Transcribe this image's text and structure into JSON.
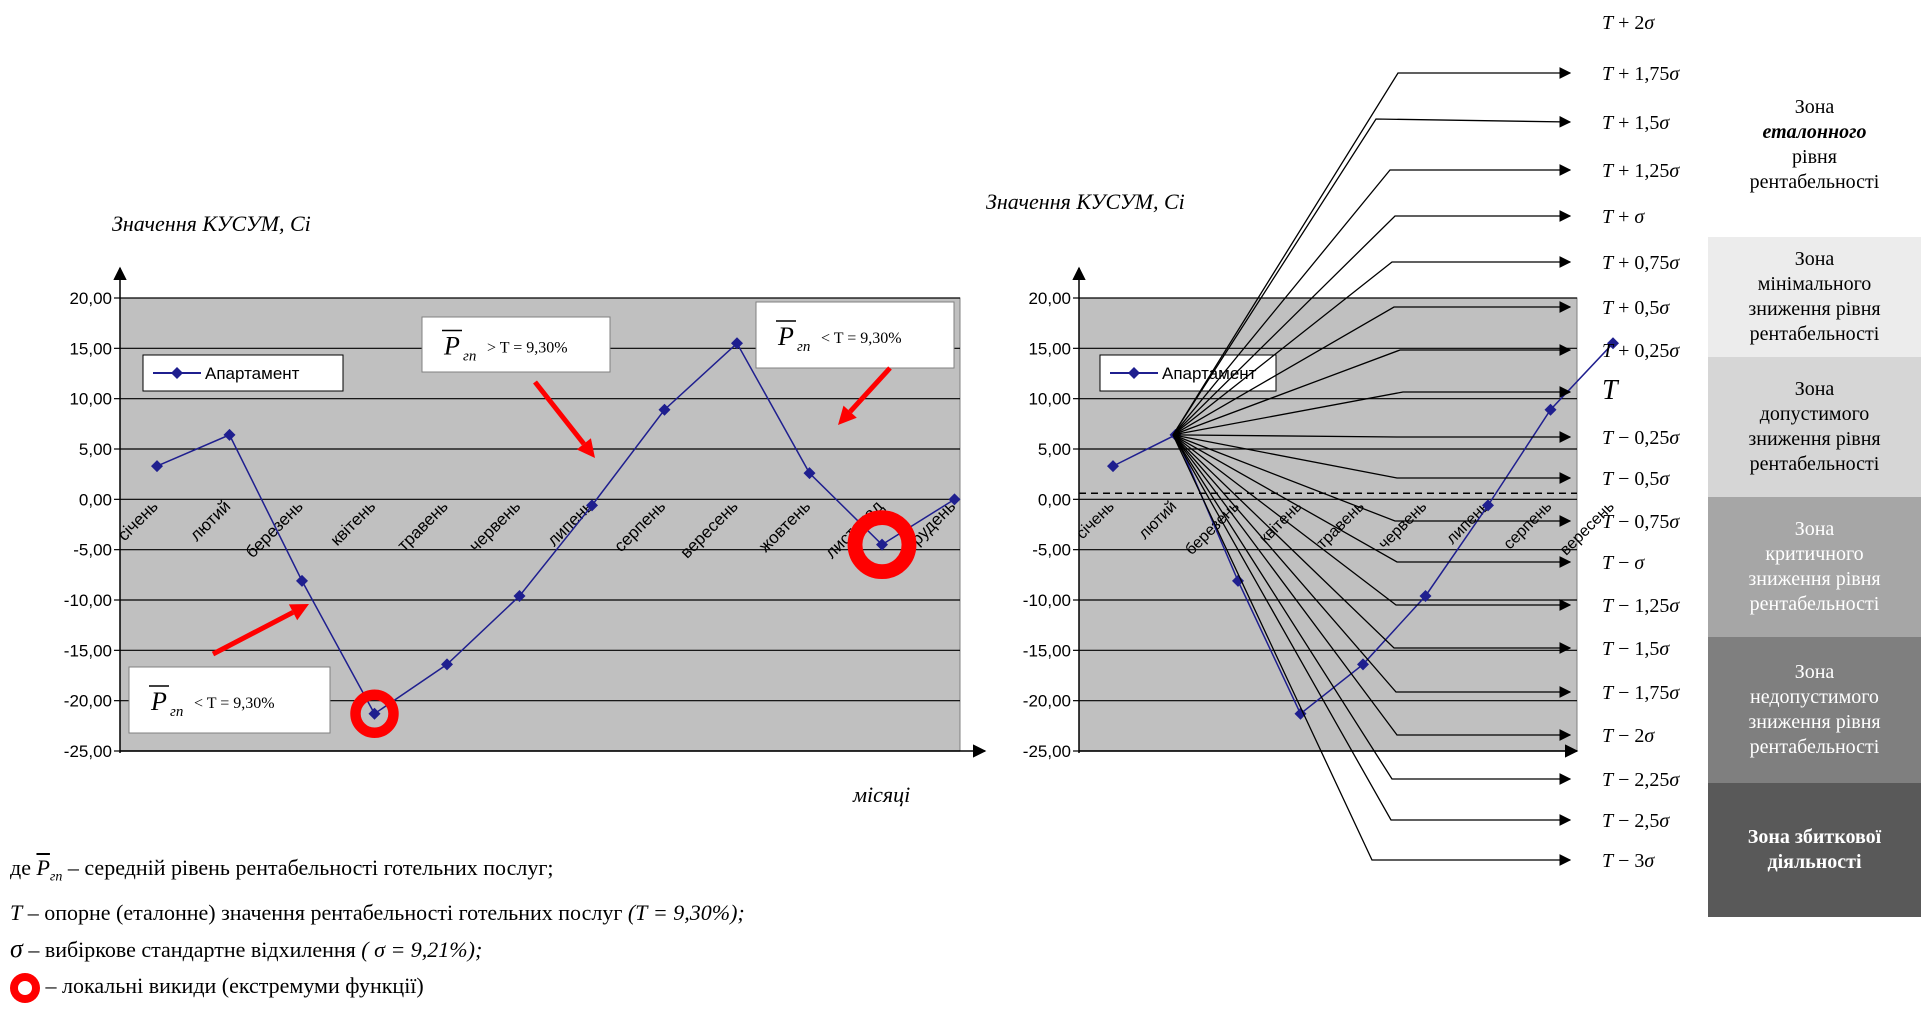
{
  "chart_data": [
    {
      "type": "line",
      "ylabel": "Значення КУСУМ, Сі",
      "xlabel": "місяці",
      "ylim": [
        -25,
        20
      ],
      "yticks": [
        "20,00",
        "15,00",
        "10,00",
        "5,00",
        "0,00",
        "-5,00",
        "-10,00",
        "-15,00",
        "-20,00",
        "-25,00"
      ],
      "categories": [
        "січень",
        "лютий",
        "березень",
        "квітень",
        "травень",
        "червень",
        "липень",
        "серпень",
        "вересень",
        "жовтень",
        "листопад",
        "грудень"
      ],
      "series": [
        {
          "name": "Апартамент",
          "values": [
            3.3,
            6.4,
            -8.1,
            -21.3,
            -16.4,
            -9.6,
            -0.6,
            8.9,
            15.5,
            2.6,
            -4.5,
            0.0
          ],
          "color": "#1f1f8f"
        }
      ],
      "annotations": [
        {
          "base": "P",
          "sub": "гп",
          "rest": "> T = 9,30%"
        },
        {
          "base": "P",
          "sub": "гп",
          "rest": "< T = 9,30%"
        },
        {
          "base": "P",
          "sub": "гп",
          "rest": "< T = 9,30%"
        }
      ],
      "extrema_indices": [
        3,
        10
      ]
    },
    {
      "type": "line",
      "ylabel": "Значення КУСУМ, Сі",
      "ylim": [
        -25,
        20
      ],
      "yticks": [
        "20,00",
        "15,00",
        "10,00",
        "5,00",
        "0,00",
        "-5,00",
        "-10,00",
        "-15,00",
        "-20,00",
        "-25,00"
      ],
      "categories": [
        "січень",
        "лютий",
        "березень",
        "квітень",
        "травень",
        "червень",
        "липень",
        "серпень",
        "вересень"
      ],
      "series": [
        {
          "name": "Апартамент",
          "values": [
            3.3,
            6.4,
            -8.1,
            -21.3,
            -16.4,
            -9.6,
            -0.6,
            8.9,
            15.5
          ],
          "color": "#1f1f8f"
        }
      ],
      "reference_line_value": 0.6,
      "levels": [
        "T + 2σ",
        "T + 1,75σ",
        "T + 1,5σ",
        "T + 1,25σ",
        "T + σ",
        "T + 0,75σ",
        "T + 0,5σ",
        "T + 0,25σ",
        "T",
        "T − 0,25σ",
        "T − 0,5σ",
        "T − 0,75σ",
        "T − σ",
        "T − 1,25σ",
        "T − 1,5σ",
        "T − 1,75σ",
        "T − 2σ",
        "T − 2,25σ",
        "T − 2,5σ",
        "T − 3σ"
      ]
    }
  ],
  "zones": [
    {
      "lines": [
        "Зона",
        "еталонного",
        "рівня",
        "рентабельності"
      ],
      "bg": "#ffffff",
      "color": "#000000",
      "emph_index": 1
    },
    {
      "lines": [
        "Зона",
        "мінімального",
        "зниження рівня",
        "рентабельності"
      ],
      "bg": "#ececec",
      "color": "#000000",
      "emph_index": -1
    },
    {
      "lines": [
        "Зона",
        "допустимого",
        "зниження рівня",
        "рентабельності"
      ],
      "bg": "#d6d6d6",
      "color": "#000000",
      "emph_index": -1
    },
    {
      "lines": [
        "Зона",
        "критичного",
        "зниження рівня",
        "рентабельності"
      ],
      "bg": "#a6a6a6",
      "color": "#ffffff",
      "emph_index": -1
    },
    {
      "lines": [
        "Зона",
        "недопустимого",
        "зниження рівня",
        "рентабельності"
      ],
      "bg": "#7f7f7f",
      "color": "#ffffff",
      "emph_index": -1
    },
    {
      "lines": [
        "Зона збиткової",
        "діяльності"
      ],
      "bg": "#595959",
      "color": "#ffffff",
      "emph_index": -1,
      "bold": true
    }
  ],
  "legend": {
    "line1_prefix": "де",
    "line1_sym_base": "P",
    "line1_sym_sub": "гп",
    "line1_text": "– середній рівень рентабельності  готельних послуг;",
    "line2_sym": "T",
    "line2_text": "– опорне (еталонне) значення  рентабельності готельних послуг",
    "line2_italic": "(Т = 9,30%);",
    "line3_sym": "σ",
    "line3_text": "–  вибіркове стандартне відхилення",
    "line3_italic": "( σ = 9,21%);",
    "line4_text": "– локальні викиди (екстремуми функції)"
  }
}
